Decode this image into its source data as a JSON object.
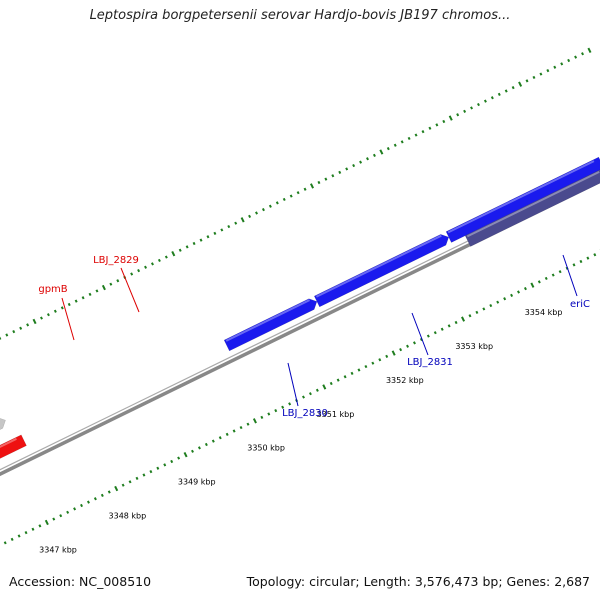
{
  "title": "Leptospira borgpetersenii serovar Hardjo-bovis JB197 chromos...",
  "footer": {
    "accession": "Accession: NC_008510",
    "summary": "Topology: circular; Length: 3,576,473 bp; Genes: 2,687"
  },
  "colors": {
    "backbone": "#888888",
    "tick": "#1e7d1e",
    "forward_gene": "#1a1aee",
    "reverse_gene": "#ee1111",
    "highlight_gene": "#2ad0d0",
    "grey_gene": "#c6c6c6",
    "dark_gene": "#4a4a8e",
    "label_red": "#dd0000",
    "label_blue": "#0000bb"
  },
  "scale": {
    "unit": "kbp",
    "labels": [
      {
        "kbp": 3347,
        "text": "3347 kbp"
      },
      {
        "kbp": 3348,
        "text": "3348 kbp"
      },
      {
        "kbp": 3349,
        "text": "3349 kbp"
      },
      {
        "kbp": 3350,
        "text": "3350 kbp"
      },
      {
        "kbp": 3351,
        "text": "3351 kbp"
      },
      {
        "kbp": 3352,
        "text": "3352 kbp"
      },
      {
        "kbp": 3353,
        "text": "3353 kbp"
      },
      {
        "kbp": 3354,
        "text": "3354 kbp"
      }
    ]
  },
  "gene_labels": [
    {
      "text": "gpmB",
      "color": "red"
    },
    {
      "text": "LBJ_2829",
      "color": "red"
    },
    {
      "text": "LBJ_2830",
      "color": "blue"
    },
    {
      "text": "LBJ_2831",
      "color": "blue"
    },
    {
      "text": "eriC",
      "color": "blue"
    }
  ]
}
